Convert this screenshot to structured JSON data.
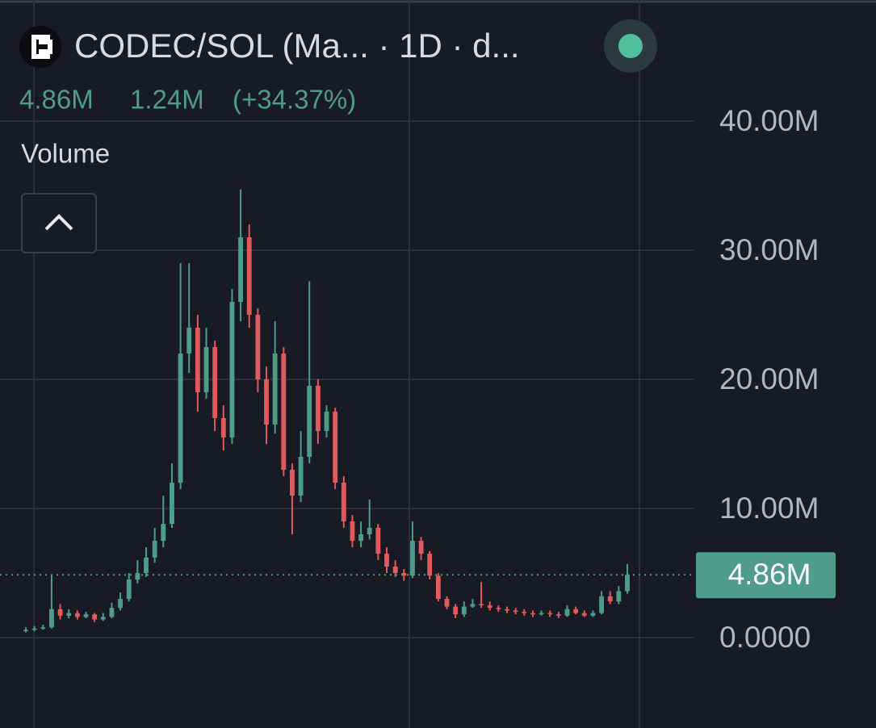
{
  "header": {
    "title": "CODEC/SOL (Ma... · 1D · d...",
    "stats": [
      "4.86M",
      "1.24M",
      "(+34.37%)"
    ],
    "indicator": "Volume"
  },
  "chart_data": {
    "type": "candlestick",
    "up_color": "#4f9d89",
    "down_color": "#e05a5e",
    "open": [
      0.5,
      0.6,
      0.7,
      0.8,
      2.2,
      1.7,
      1.9,
      1.6,
      1.8,
      1.4,
      1.6,
      2.3,
      3.0,
      4.5,
      5.0,
      6.2,
      7.5,
      8.8,
      12.0,
      22.0,
      24.0,
      19.0,
      22.5,
      17.0,
      15.5,
      26.0,
      31.0,
      25.0,
      20.0,
      16.5,
      22.0,
      13.0,
      11.0,
      14.0,
      19.5,
      16.0,
      17.5,
      12.0,
      9.0,
      7.5,
      8.0,
      8.5,
      6.5,
      5.5,
      5.0,
      4.8,
      7.5,
      6.5,
      4.8,
      3.0,
      2.4,
      1.8,
      2.4,
      2.6,
      2.5,
      2.3,
      2.2,
      2.1,
      2.0,
      1.9,
      1.8,
      1.9,
      1.8,
      1.7,
      2.2,
      1.9,
      1.7,
      1.9,
      3.2,
      2.8,
      3.6
    ],
    "high": [
      0.8,
      0.9,
      1.0,
      4.9,
      2.6,
      2.2,
      2.1,
      2.0,
      1.9,
      1.9,
      2.7,
      3.5,
      5.0,
      6.0,
      7.0,
      8.5,
      11.0,
      13.5,
      29.0,
      29.0,
      25.0,
      24.0,
      23.0,
      18.0,
      27.0,
      34.7,
      32.0,
      25.5,
      21.0,
      24.5,
      22.5,
      13.5,
      16.0,
      27.6,
      20.0,
      18.0,
      17.8,
      12.5,
      9.5,
      9.0,
      10.7,
      8.8,
      7.0,
      6.0,
      5.3,
      9.0,
      7.8,
      6.7,
      5.0,
      3.2,
      2.6,
      2.8,
      3.0,
      4.3,
      2.8,
      2.5,
      2.4,
      2.3,
      2.2,
      2.1,
      2.1,
      2.1,
      2.0,
      2.5,
      2.4,
      2.1,
      2.1,
      3.6,
      3.6,
      4.0,
      5.7
    ],
    "low": [
      0.4,
      0.5,
      0.6,
      0.7,
      1.4,
      1.5,
      1.4,
      1.5,
      1.2,
      1.3,
      1.5,
      2.1,
      2.8,
      4.2,
      4.7,
      5.8,
      7.0,
      8.5,
      11.5,
      20.5,
      17.5,
      18.5,
      16.0,
      14.5,
      15.0,
      24.5,
      24.0,
      19.0,
      15.0,
      15.8,
      12.5,
      8.0,
      10.5,
      13.5,
      15.0,
      15.5,
      11.5,
      8.5,
      7.0,
      7.0,
      7.6,
      6.0,
      5.0,
      4.7,
      4.4,
      4.6,
      6.0,
      4.5,
      2.8,
      2.2,
      1.5,
      1.6,
      2.3,
      2.3,
      2.1,
      2.0,
      1.9,
      1.8,
      1.7,
      1.6,
      1.7,
      1.6,
      1.5,
      1.6,
      1.8,
      1.6,
      1.6,
      1.8,
      2.6,
      2.6,
      3.4
    ],
    "close": [
      0.6,
      0.7,
      0.8,
      2.2,
      1.7,
      1.9,
      1.6,
      1.8,
      1.4,
      1.6,
      2.3,
      3.0,
      4.5,
      5.0,
      6.2,
      7.5,
      8.8,
      12.0,
      22.0,
      24.0,
      19.0,
      22.5,
      17.0,
      15.5,
      26.0,
      31.0,
      25.0,
      20.0,
      16.5,
      22.0,
      13.0,
      11.0,
      14.0,
      19.5,
      16.0,
      17.5,
      12.0,
      9.0,
      7.5,
      8.0,
      8.5,
      6.5,
      5.5,
      5.0,
      4.8,
      7.5,
      6.5,
      4.8,
      3.0,
      2.4,
      1.8,
      2.4,
      2.6,
      2.5,
      2.3,
      2.2,
      2.1,
      2.0,
      1.9,
      1.8,
      1.9,
      1.8,
      1.7,
      2.2,
      1.9,
      1.7,
      1.9,
      3.2,
      2.8,
      3.6,
      4.86
    ],
    "ylim": [
      -7,
      49.375
    ],
    "yticks": [
      {
        "value": 0,
        "label": "0.0000"
      },
      {
        "value": 10,
        "label": "10.00M"
      },
      {
        "value": 20,
        "label": "20.00M"
      },
      {
        "value": 30,
        "label": "30.00M"
      },
      {
        "value": 40,
        "label": "40.00M"
      }
    ],
    "grid": true,
    "price_line": {
      "value": 4.86,
      "label": "4.86M",
      "color": "#4f9d89"
    }
  }
}
